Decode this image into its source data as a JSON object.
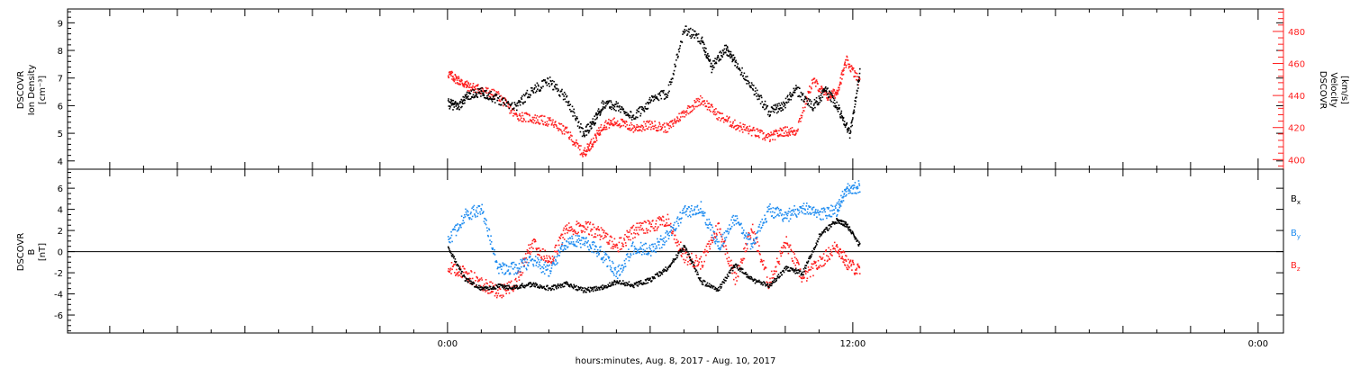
{
  "chart_data": [
    {
      "type": "scatter",
      "panel": "plasma",
      "ylabel_lines": [
        "DSCOVR",
        "Ion Density",
        "[cm⁻³]"
      ],
      "y2label_lines": [
        "DSCOVR",
        "Velocity",
        "[km/s]"
      ],
      "ylim": [
        3.7,
        9.5
      ],
      "yticks": [
        "4",
        "5",
        "6",
        "7",
        "8",
        "9"
      ],
      "y2lim": [
        394,
        494
      ],
      "y2ticks": [
        "400",
        "420",
        "440",
        "460",
        "480"
      ],
      "colors": {
        "density": "#000000",
        "velocity": "#ff2020"
      },
      "series": [
        {
          "key": "density",
          "x": [
            0,
            0.3,
            0.6,
            1.0,
            1.4,
            2.0,
            2.5,
            3.0,
            3.5,
            4.0,
            4.3,
            4.6,
            5.0,
            5.5,
            6.0,
            6.5,
            7.0,
            7.5,
            7.8,
            8.2,
            8.5,
            9.0,
            9.5,
            9.9,
            10.3,
            10.8,
            11.2,
            11.6,
            11.9,
            12.2
          ],
          "y": [
            6.1,
            6.0,
            6.4,
            6.5,
            6.3,
            6.0,
            6.6,
            6.9,
            6.3,
            5.0,
            5.4,
            6.1,
            6.0,
            5.6,
            6.2,
            6.5,
            8.8,
            8.4,
            7.4,
            8.1,
            7.6,
            6.7,
            5.8,
            6.0,
            6.6,
            6.0,
            6.6,
            5.8,
            5.0,
            7.3
          ]
        },
        {
          "key": "velocity",
          "x": [
            0,
            0.3,
            0.6,
            1.0,
            1.5,
            2.0,
            2.5,
            3.0,
            3.5,
            4.0,
            4.3,
            4.6,
            5.0,
            5.5,
            6.0,
            6.5,
            7.0,
            7.5,
            8.0,
            8.5,
            9.0,
            9.5,
            9.9,
            10.3,
            10.8,
            11.2,
            11.5,
            11.8,
            12.2
          ],
          "y": [
            454,
            450,
            446,
            444,
            440,
            428,
            426,
            424,
            418,
            404,
            412,
            422,
            424,
            420,
            422,
            420,
            430,
            438,
            428,
            422,
            418,
            414,
            418,
            418,
            450,
            440,
            442,
            462,
            448
          ]
        }
      ]
    },
    {
      "type": "scatter",
      "panel": "magnetic",
      "ylabel_lines": [
        "DSCOVR",
        "B",
        "[nT]"
      ],
      "ylim": [
        -7.7,
        7.8
      ],
      "yticks": [
        "-6",
        "-4",
        "-2",
        "0",
        "2",
        "4",
        "6"
      ],
      "legend": [
        {
          "key": "bx",
          "label": "B",
          "sub": "x"
        },
        {
          "key": "by",
          "label": "B",
          "sub": "y"
        },
        {
          "key": "bz",
          "label": "B",
          "sub": "z"
        }
      ],
      "colors": {
        "bx": "#000000",
        "by": "#1e8cf0",
        "bz": "#ff2020"
      },
      "series": [
        {
          "key": "bx",
          "x": [
            0,
            0.5,
            1.0,
            1.5,
            2.0,
            2.5,
            3.0,
            3.5,
            4.0,
            4.5,
            5.0,
            5.5,
            6.0,
            6.5,
            7.0,
            7.5,
            8.0,
            8.5,
            9.0,
            9.5,
            10.0,
            10.5,
            11.0,
            11.5,
            11.8,
            12.2
          ],
          "y": [
            0.5,
            -2.5,
            -3.5,
            -3.2,
            -3.3,
            -3.0,
            -3.4,
            -3.0,
            -3.6,
            -3.4,
            -2.8,
            -3.1,
            -2.6,
            -1.5,
            0.6,
            -2.8,
            -3.5,
            -1.2,
            -2.6,
            -3.2,
            -1.5,
            -2.0,
            1.6,
            3.0,
            2.6,
            0.6
          ]
        },
        {
          "key": "by",
          "x": [
            0,
            0.5,
            1.0,
            1.5,
            2.0,
            2.5,
            3.0,
            3.5,
            4.0,
            4.5,
            5.0,
            5.5,
            6.0,
            6.5,
            7.0,
            7.5,
            8.0,
            8.5,
            9.0,
            9.5,
            10.0,
            10.5,
            11.0,
            11.5,
            11.8,
            12.2
          ],
          "y": [
            1.0,
            3.5,
            4.1,
            -1.5,
            -1.5,
            -0.8,
            -1.8,
            1.0,
            1.0,
            0.0,
            -2.0,
            0.5,
            0.2,
            1.5,
            3.8,
            4.2,
            0.5,
            3.3,
            0.6,
            4.0,
            3.4,
            4.2,
            3.6,
            4.0,
            6.0,
            6.2
          ]
        },
        {
          "key": "bz",
          "x": [
            0,
            0.5,
            1.0,
            1.5,
            2.0,
            2.5,
            3.0,
            3.5,
            4.0,
            4.5,
            5.0,
            5.5,
            6.0,
            6.5,
            7.0,
            7.5,
            8.0,
            8.5,
            9.0,
            9.5,
            10.0,
            10.5,
            11.0,
            11.5,
            11.8,
            12.2
          ],
          "y": [
            -1.5,
            -2.0,
            -3.0,
            -3.8,
            -3.0,
            1.0,
            -1.0,
            2.2,
            2.5,
            1.8,
            0.5,
            2.0,
            2.5,
            3.0,
            -0.5,
            -1.0,
            2.5,
            -2.5,
            2.2,
            -3.0,
            1.0,
            -2.5,
            -1.0,
            0.6,
            -1.0,
            -1.8
          ]
        }
      ]
    }
  ],
  "x_axis": {
    "xlim": [
      -11.25,
      24.75
    ],
    "ticks": [
      {
        "x": 0,
        "label": "0:00"
      },
      {
        "x": 12,
        "label": "12:00"
      },
      {
        "x": 24,
        "label": "0:00"
      }
    ],
    "xlabel": "hours:minutes, Aug.  8, 2017 - Aug. 10, 2017"
  }
}
